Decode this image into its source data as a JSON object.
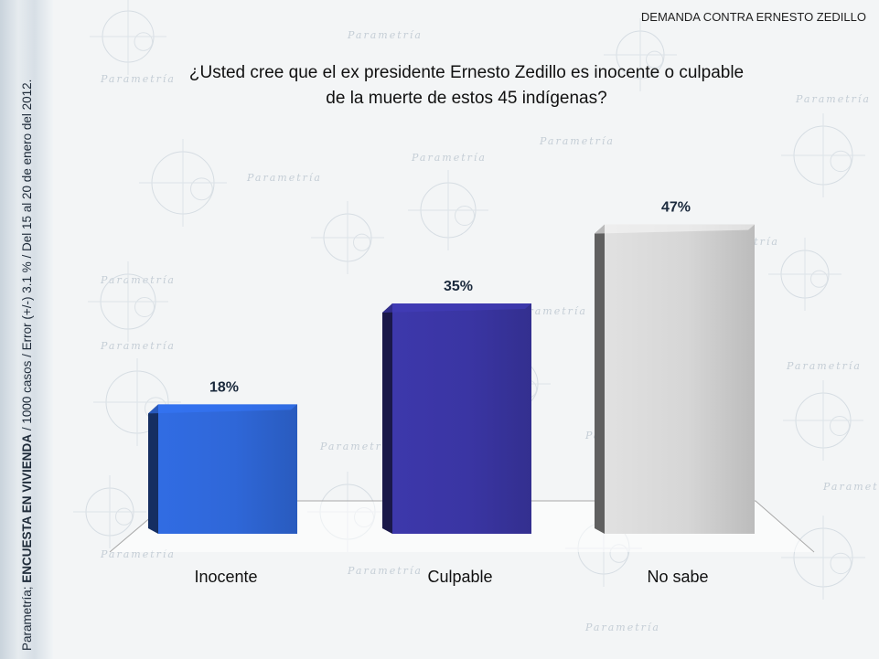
{
  "header": {
    "label": "DEMANDA CONTRA ERNESTO ZEDILLO"
  },
  "question": {
    "line1": "¿Usted cree que el ex presidente Ernesto Zedillo es inocente o culpable",
    "line2": "de la muerte de estos 45 indígenas?"
  },
  "side_note": {
    "source": "Parametría; ",
    "method": "ENCUESTA EN VIVIENDA",
    "details": " / 1000 casos / Error (+/-) 3.1 % / Del 15 al 20 de enero del 2012."
  },
  "watermark": {
    "text": "Parametría"
  },
  "colors": {
    "Inocente": "#2f67d8",
    "Culpable": "#3a35a3",
    "No sabe": "#d6d6d6"
  },
  "chart_data": {
    "type": "bar",
    "title": "¿Usted cree que el ex presidente Ernesto Zedillo es inocente o culpable de la muerte de estos 45 indígenas?",
    "categories": [
      "Inocente",
      "Culpable",
      "No sabe"
    ],
    "values": [
      18,
      35,
      47
    ],
    "data_labels": [
      "18%",
      "35%",
      "47%"
    ],
    "unit": "%",
    "ylim": [
      0,
      50
    ],
    "grid": false,
    "legend": "none"
  }
}
